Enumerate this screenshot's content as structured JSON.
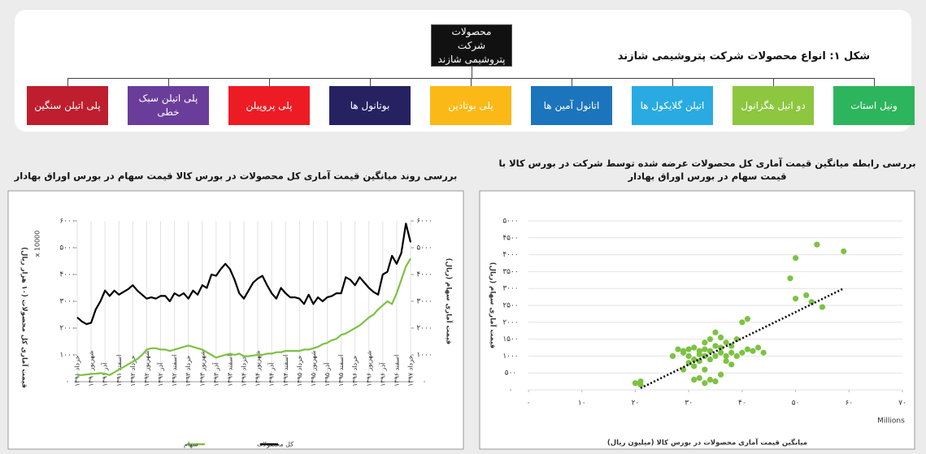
{
  "diagram": {
    "title": "شکل ۱: انواع محصولات شرکت پتروشیمی شازند",
    "root": "محصولات شرکت پتروشیمی شازند",
    "children": [
      {
        "label": "ونیل استات",
        "color": "#2db55d"
      },
      {
        "label": "دو اتیل هگزانول",
        "color": "#8dc63f"
      },
      {
        "label": "اتیلن گلایکول ها",
        "color": "#29abe2"
      },
      {
        "label": "اتانول آمین ها",
        "color": "#1c75bc"
      },
      {
        "label": "پلی بوتادین",
        "color": "#fbb917"
      },
      {
        "label": "بوتانول ها",
        "color": "#262262"
      },
      {
        "label": "پلی پروپیلن",
        "color": "#ed1c24"
      },
      {
        "label": "پلی اتیلن سبک خطی",
        "color": "#6a3d9a"
      },
      {
        "label": "پلی اتیلن سنگین",
        "color": "#be1e2d"
      }
    ]
  },
  "chart_data": [
    {
      "type": "line",
      "title": "بررسی روند میانگین قیمت آماری کل محصولات در بورس کالا قیمت سهام در بورس اوراق بهادار",
      "y_label": "قیمت آماری کل محصولات (۱۰ هزار ریال)",
      "y_multiplier": "x 10000",
      "y2_label": "قیمت آماری سهام (ریال)",
      "categories": [
        "خرداد ۱۳۹۱",
        null,
        null,
        "شهریور ۱۳۹۱",
        null,
        null,
        "آذر ۱۳۹۱",
        null,
        null,
        "اسفند ۱۳۹۱",
        null,
        null,
        "خرداد ۱۳۹۲",
        null,
        null,
        "شهریور ۱۳۹۲",
        null,
        null,
        "آذر ۱۳۹۲",
        null,
        null,
        "اسفند ۱۳۹۲",
        null,
        null,
        "خرداد ۱۳۹۳",
        null,
        null,
        "شهریور ۱۳۹۳",
        null,
        null,
        "آذر ۱۳۹۳",
        null,
        null,
        "اسفند ۱۳۹۳",
        null,
        null,
        "خرداد ۱۳۹۴",
        null,
        null,
        "شهریور ۱۳۹۴",
        null,
        null,
        "آذر ۱۳۹۴",
        null,
        null,
        "اسفند ۱۳۹۴",
        null,
        null,
        "خرداد ۱۳۹۵",
        null,
        null,
        "شهریور ۱۳۹۵",
        null,
        null,
        "آذر ۱۳۹۵",
        null,
        null,
        "اسفند ۱۳۹۵",
        null,
        null,
        "خرداد ۱۳۹۶",
        null,
        null,
        "شهریور ۱۳۹۶",
        null,
        null,
        "آذر ۱۳۹۶",
        null,
        null,
        "اسفند ۱۳۹۶",
        null,
        null,
        "خرداد ۱۳۹۷"
      ],
      "series": [
        {
          "name": "کل محصولات",
          "color": "#000000",
          "values": [
            2400,
            2250,
            2150,
            2200,
            2700,
            3000,
            3400,
            3200,
            3400,
            3250,
            3350,
            3450,
            3600,
            3400,
            3250,
            3100,
            3150,
            3100,
            3200,
            3200,
            3000,
            3300,
            3200,
            3300,
            3100,
            3400,
            3250,
            3600,
            3500,
            4000,
            3950,
            4200,
            4400,
            4200,
            3800,
            3300,
            3100,
            3400,
            3700,
            3850,
            3950,
            3600,
            3300,
            3100,
            3500,
            3300,
            3150,
            3150,
            3100,
            2900,
            3250,
            2900,
            3150,
            3000,
            3150,
            3200,
            3300,
            3300,
            3900,
            3800,
            3600,
            3900,
            3700,
            3500,
            3350,
            3250,
            4000,
            4100,
            4700,
            4400,
            4800,
            5900,
            5200
          ]
        },
        {
          "name": "سهام",
          "color": "#7dc242",
          "axis": "y2",
          "values": [
            250,
            250,
            270,
            290,
            300,
            320,
            300,
            250,
            350,
            450,
            550,
            650,
            750,
            850,
            1000,
            1200,
            1250,
            1250,
            1200,
            1200,
            1150,
            1200,
            1250,
            1300,
            1350,
            1300,
            1250,
            1200,
            1100,
            1000,
            900,
            950,
            1000,
            1050,
            1000,
            1050,
            950,
            950,
            980,
            1000,
            1000,
            1050,
            1050,
            1100,
            1100,
            1150,
            1150,
            1150,
            1150,
            1200,
            1200,
            1250,
            1300,
            1400,
            1450,
            1550,
            1600,
            1750,
            1800,
            1900,
            2000,
            2100,
            2250,
            2400,
            2500,
            2700,
            2850,
            3000,
            2900,
            3300,
            3800,
            4300,
            4600
          ]
        }
      ],
      "ylim": [
        0,
        6000
      ],
      "yticks": [
        {
          "value": 0,
          "label": "۰"
        },
        {
          "value": 1000,
          "label": "۱۰۰۰"
        },
        {
          "value": 2000,
          "label": "۲۰۰۰"
        },
        {
          "value": 3000,
          "label": "۳۰۰۰"
        },
        {
          "value": 4000,
          "label": "۴۰۰۰"
        },
        {
          "value": 5000,
          "label": "۵۰۰۰"
        },
        {
          "value": 6000,
          "label": "۶۰۰۰"
        }
      ],
      "y2lim": [
        0,
        6000
      ],
      "y2ticks": [
        {
          "value": 0,
          "label": "۰"
        },
        {
          "value": 1000,
          "label": "۱۰۰۰"
        },
        {
          "value": 2000,
          "label": "۲۰۰۰"
        },
        {
          "value": 3000,
          "label": "۳۰۰۰"
        },
        {
          "value": 4000,
          "label": "۴۰۰۰"
        },
        {
          "value": 5000,
          "label": "۵۰۰۰"
        },
        {
          "value": 6000,
          "label": "۶۰۰۰"
        }
      ],
      "grid": true,
      "legend": "bottom"
    },
    {
      "type": "scatter",
      "title": "بررسی رابطه میانگین قیمت آماری کل محصولات عرضه شده توسط شرکت در بورس کالا با قیمت سهام در بورس اوراق بهادار",
      "x_label": "میانگین قیمت آماری محصولات در بورس کالا (میلیون ریال)",
      "x_unit": "Millions",
      "y_label": "قیمت آماری سهام (ریال)",
      "color": "#7dc242",
      "x": [
        20,
        21,
        21,
        27,
        28,
        29,
        29,
        30,
        30,
        31,
        31,
        32,
        32,
        33,
        33,
        33,
        34,
        34,
        34,
        35,
        35,
        35,
        36,
        36,
        36,
        37,
        37,
        38,
        38,
        39,
        39,
        40,
        41,
        41,
        40,
        42,
        43,
        44,
        30,
        31,
        33,
        31,
        32,
        34,
        35,
        33,
        36,
        37,
        38,
        50,
        52,
        53,
        55,
        49,
        54,
        59,
        50,
        32,
        29
      ],
      "values": [
        200,
        250,
        150,
        1000,
        1200,
        1150,
        1100,
        1200,
        1000,
        1250,
        900,
        1150,
        1050,
        1200,
        1000,
        1400,
        1150,
        1500,
        900,
        1000,
        1300,
        1700,
        1100,
        1250,
        1550,
        1000,
        1400,
        1100,
        1300,
        1000,
        1500,
        1100,
        1200,
        2100,
        2000,
        1150,
        1250,
        1100,
        800,
        700,
        600,
        300,
        350,
        300,
        250,
        200,
        450,
        850,
        750,
        2700,
        2800,
        2600,
        2450,
        3300,
        4300,
        4100,
        3900,
        850,
        600
      ],
      "trendline": {
        "x": [
          21,
          59
        ],
        "y": [
          50,
          3000
        ],
        "color": "#000000"
      },
      "xlim": [
        0,
        70
      ],
      "xticks": [
        {
          "value": 0,
          "label": "۰"
        },
        {
          "value": 10,
          "label": "۱۰"
        },
        {
          "value": 20,
          "label": "۲۰"
        },
        {
          "value": 30,
          "label": "۳۰"
        },
        {
          "value": 40,
          "label": "۴۰"
        },
        {
          "value": 50,
          "label": "۵۰"
        },
        {
          "value": 60,
          "label": "۶۰"
        },
        {
          "value": 70,
          "label": "۷۰"
        }
      ],
      "ylim": [
        0,
        5000
      ],
      "yticks": [
        {
          "value": 0,
          "label": "۰"
        },
        {
          "value": 500,
          "label": "۵۰۰"
        },
        {
          "value": 1000,
          "label": "۱۰۰۰"
        },
        {
          "value": 1500,
          "label": "۱۵۰۰"
        },
        {
          "value": 2000,
          "label": "۲۰۰۰"
        },
        {
          "value": 2500,
          "label": "۲۵۰۰"
        },
        {
          "value": 3000,
          "label": "۳۰۰۰"
        },
        {
          "value": 3500,
          "label": "۳۵۰۰"
        },
        {
          "value": 4000,
          "label": "۴۰۰۰"
        },
        {
          "value": 4500,
          "label": "۴۵۰۰"
        },
        {
          "value": 5000,
          "label": "۵۰۰۰"
        }
      ],
      "grid": true
    }
  ]
}
